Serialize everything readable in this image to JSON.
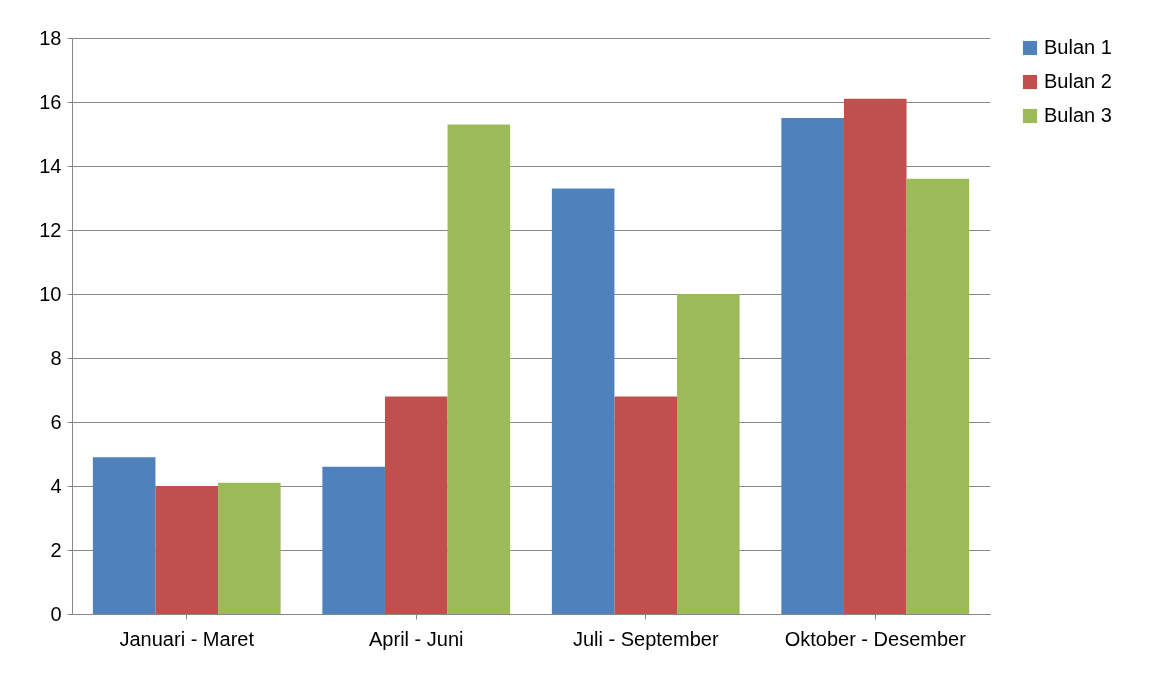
{
  "chart_data": {
    "type": "bar",
    "categories": [
      "Januari - Maret",
      "April - Juni",
      "Juli - September",
      "Oktober - Desember"
    ],
    "series": [
      {
        "name": "Bulan 1",
        "color": "#4f81bd",
        "values": [
          4.9,
          4.6,
          13.3,
          15.5
        ]
      },
      {
        "name": "Bulan 2",
        "color": "#c0504d",
        "values": [
          4.0,
          6.8,
          6.8,
          16.1
        ]
      },
      {
        "name": "Bulan 3",
        "color": "#9bbb59",
        "values": [
          4.1,
          15.3,
          10.0,
          13.6
        ]
      }
    ],
    "ylim": [
      0,
      18
    ],
    "yticks": [
      0,
      2,
      4,
      6,
      8,
      10,
      12,
      14,
      16,
      18
    ],
    "grid": "y",
    "legend": "right"
  }
}
